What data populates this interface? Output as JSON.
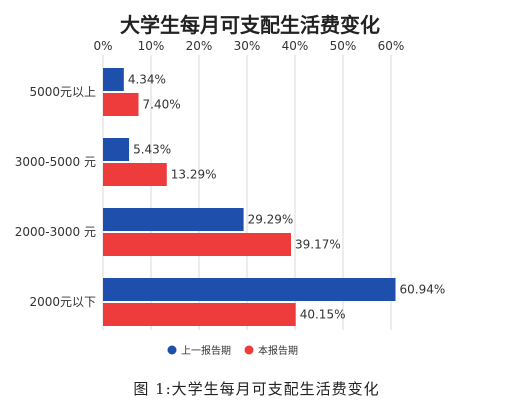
{
  "chart_data": {
    "type": "bar",
    "orientation": "horizontal",
    "title": "大学生每月可支配生活费变化",
    "categories": [
      "5000元以上",
      "3000-5000 元",
      "2000-3000 元",
      "2000元以下"
    ],
    "series": [
      {
        "name": "上一报告期",
        "values": [
          4.34,
          5.43,
          29.29,
          60.94
        ],
        "labels": [
          "4.34%",
          "5.43%",
          "29.29%",
          "60.94%"
        ],
        "color": "#1f4fad"
      },
      {
        "name": "本报告期",
        "values": [
          7.4,
          13.29,
          39.17,
          40.15
        ],
        "labels": [
          "7.40%",
          "13.29%",
          "39.17%",
          "40.15%"
        ],
        "color": "#ee3b3b"
      }
    ],
    "xlim": [
      0,
      60
    ],
    "xticks": [
      "0%",
      "10%",
      "20%",
      "30%",
      "40%",
      "50%",
      "60%"
    ],
    "grid": true,
    "axis_position": "top",
    "legend_position": "bottom"
  },
  "caption": "图 1:大学生每月可支配生活费变化"
}
